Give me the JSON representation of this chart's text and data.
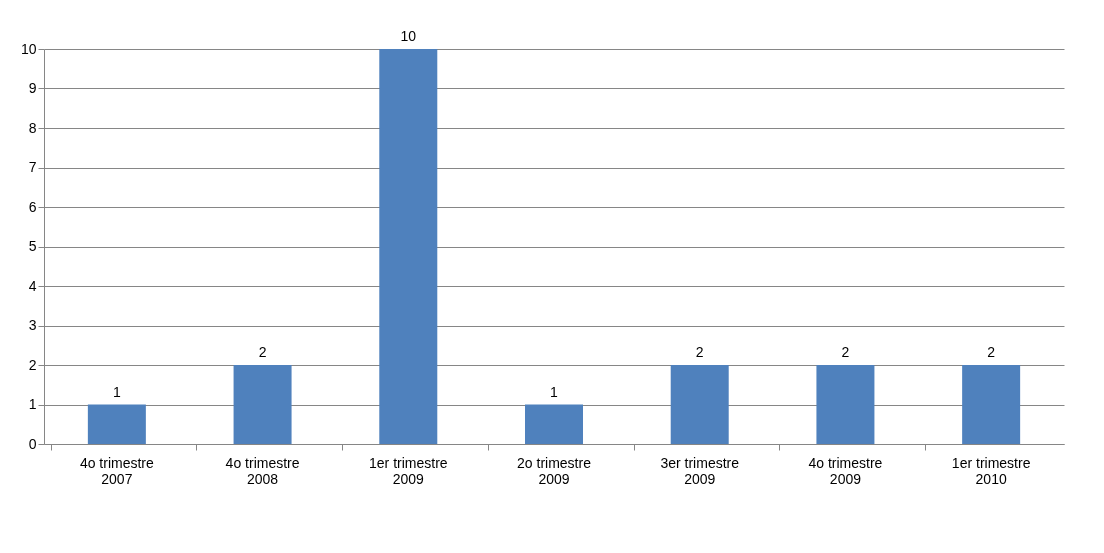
{
  "chart_data": {
    "type": "bar",
    "categories": [
      "4o trimestre 2007",
      "4o trimestre 2008",
      "1er trimestre 2009",
      "2o trimestre 2009",
      "3er trimestre 2009",
      "4o trimestre 2009",
      "1er trimestre 2010"
    ],
    "values": [
      1,
      2,
      10,
      1,
      2,
      2,
      2
    ],
    "color": "#4f81bd",
    "ylim": [
      0,
      10
    ],
    "yticks": [
      0,
      1,
      2,
      3,
      4,
      5,
      6,
      7,
      8,
      9,
      10
    ],
    "grid": "y",
    "data_labels": true
  }
}
